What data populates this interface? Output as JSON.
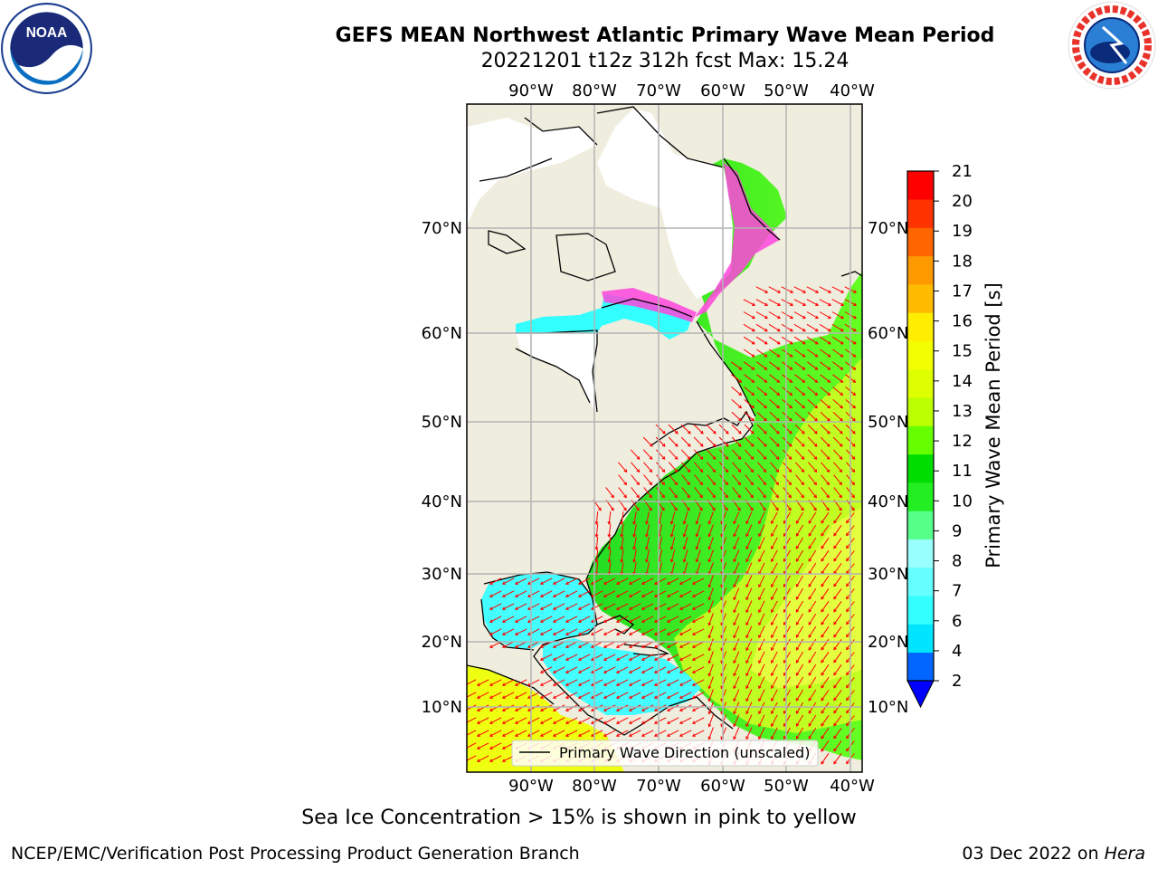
{
  "header": {
    "title_line1": "GEFS MEAN Northwest Atlantic Primary Wave Mean Period",
    "title_line2": "20221201 t12z 312h fcst   Max: 15.24"
  },
  "map": {
    "lon_labels": [
      "90°W",
      "80°W",
      "70°W",
      "60°W",
      "50°W",
      "40°W"
    ],
    "lat_labels": [
      "70°N",
      "60°N",
      "50°N",
      "40°N",
      "30°N",
      "20°N",
      "10°N"
    ],
    "legend_label": "Primary Wave Direction (unscaled)",
    "colors": {
      "land": "#efedde",
      "ice_free_white": "#ffffff",
      "grid": "#b4b4b4",
      "arrow": "#ff0000",
      "sea_ice": "#ff44dd"
    }
  },
  "colorbar": {
    "label": "Primary Wave Mean Period [s]",
    "ticks": [
      "2",
      "4",
      "6",
      "7",
      "8",
      "9",
      "10",
      "11",
      "12",
      "13",
      "14",
      "15",
      "16",
      "17",
      "18",
      "19",
      "20",
      "21"
    ],
    "colors": [
      "#0066ff",
      "#00e5ff",
      "#33ffff",
      "#66ffff",
      "#99ffff",
      "#55ff88",
      "#22ee22",
      "#00dd00",
      "#66ff00",
      "#bbff00",
      "#ddff00",
      "#f3ff00",
      "#ffee00",
      "#ffbb00",
      "#ff9900",
      "#ff6600",
      "#ff3300",
      "#ff0000"
    ],
    "extend_color": "#0000ff"
  },
  "caption": "Sea Ice Concentration > 15% is shown in pink to yellow",
  "footer": {
    "left": "NCEP/EMC/Verification Post Processing Product Generation Branch",
    "date": "03 Dec 2022 on",
    "machine": "Hera"
  }
}
